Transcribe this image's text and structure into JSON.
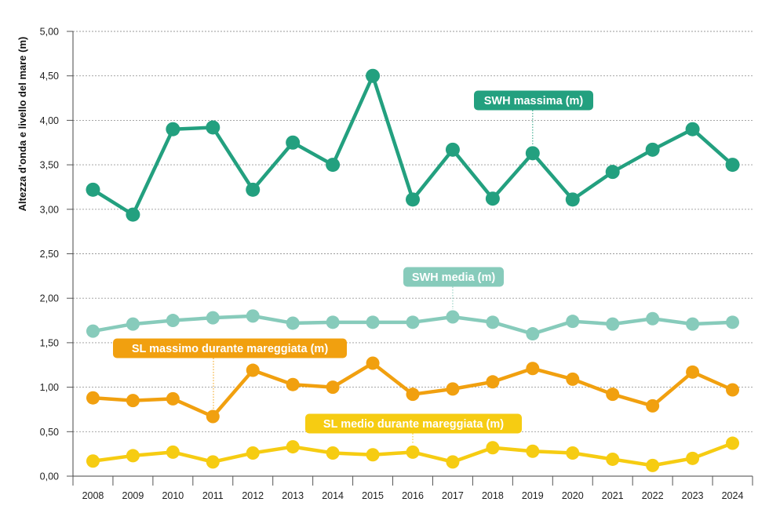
{
  "chart_data": {
    "type": "line",
    "ylabel": "Altezza d'onda e livello del mare (m)",
    "xlabel": "",
    "ylim": [
      0,
      5
    ],
    "yticks": [
      "0,00",
      "0,50",
      "1,00",
      "1,50",
      "2,00",
      "2,50",
      "3,00",
      "3,50",
      "4,00",
      "4,50",
      "5,00"
    ],
    "grid": true,
    "categories": [
      "2008",
      "2009",
      "2010",
      "2011",
      "2012",
      "2013",
      "2014",
      "2015",
      "2016",
      "2017",
      "2018",
      "2019",
      "2020",
      "2021",
      "2022",
      "2023",
      "2024"
    ],
    "series": [
      {
        "name": "SWH massima (m)",
        "color": "#23a07f",
        "values": [
          3.22,
          2.94,
          3.9,
          3.92,
          3.22,
          3.75,
          3.5,
          4.5,
          3.11,
          3.67,
          3.12,
          3.63,
          3.11,
          3.42,
          3.67,
          3.9,
          3.5
        ]
      },
      {
        "name": "SWH media (m)",
        "color": "#87cbbb",
        "values": [
          1.63,
          1.71,
          1.75,
          1.78,
          1.8,
          1.72,
          1.73,
          1.73,
          1.73,
          1.79,
          1.73,
          1.6,
          1.74,
          1.71,
          1.77,
          1.71,
          1.73
        ]
      },
      {
        "name": "SL massimo durante mareggiata (m)",
        "color": "#f1a00f",
        "values": [
          0.88,
          0.85,
          0.87,
          0.67,
          1.19,
          1.03,
          1.0,
          1.27,
          0.92,
          0.98,
          1.06,
          1.21,
          1.09,
          0.92,
          0.79,
          1.17,
          0.97
        ]
      },
      {
        "name": "SL medio durante mareggiata (m)",
        "color": "#f6cc12",
        "values": [
          0.17,
          0.23,
          0.27,
          0.16,
          0.26,
          0.33,
          0.26,
          0.24,
          0.27,
          0.16,
          0.32,
          0.28,
          0.26,
          0.19,
          0.12,
          0.2,
          0.37
        ]
      }
    ]
  }
}
